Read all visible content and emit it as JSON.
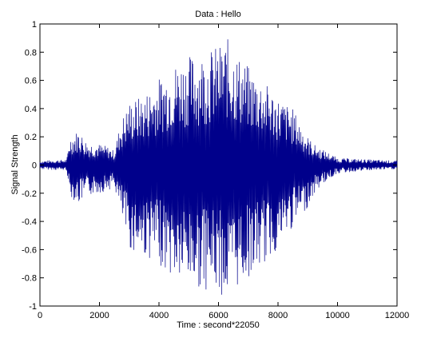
{
  "chart_data": {
    "type": "line",
    "title": "Data : Hello",
    "xlabel": "Time : second*22050",
    "ylabel": "Signal Strength",
    "xlim": [
      0,
      12000
    ],
    "ylim": [
      -1,
      1
    ],
    "xticks": [
      0,
      2000,
      4000,
      6000,
      8000,
      10000,
      12000
    ],
    "xtick_labels": [
      "0",
      "2000",
      "4000",
      "6000",
      "8000",
      "10000",
      "12000"
    ],
    "yticks": [
      -1,
      -0.8,
      -0.6,
      -0.4,
      -0.2,
      0,
      0.2,
      0.4,
      0.6,
      0.8,
      1
    ],
    "ytick_labels": [
      "-1",
      "-0.8",
      "-0.6",
      "-0.4",
      "-0.2",
      "0",
      "0.2",
      "0.4",
      "0.6",
      "0.8",
      "1"
    ],
    "grid": false,
    "line_color": "#00008b",
    "envelope": {
      "description": "approximate amplitude envelope of the oscillating waveform, read from the plot",
      "x": [
        0,
        900,
        1000,
        1300,
        1600,
        2000,
        2300,
        2500,
        2700,
        3000,
        3500,
        4000,
        4500,
        5000,
        5500,
        6000,
        6300,
        6600,
        7000,
        7500,
        8000,
        8500,
        9000,
        9300,
        9600,
        10000,
        11000,
        12000
      ],
      "upper": [
        0.03,
        0.04,
        0.2,
        0.25,
        0.16,
        0.15,
        0.13,
        0.1,
        0.3,
        0.45,
        0.5,
        0.62,
        0.72,
        0.78,
        0.8,
        0.85,
        0.9,
        0.8,
        0.7,
        0.6,
        0.48,
        0.4,
        0.2,
        0.13,
        0.1,
        0.05,
        0.04,
        0.03
      ],
      "lower": [
        -0.03,
        -0.04,
        -0.22,
        -0.28,
        -0.22,
        -0.2,
        -0.18,
        -0.15,
        -0.35,
        -0.6,
        -0.65,
        -0.7,
        -0.82,
        -0.86,
        -0.88,
        -0.9,
        -0.98,
        -0.88,
        -0.8,
        -0.72,
        -0.6,
        -0.45,
        -0.3,
        -0.18,
        -0.12,
        -0.06,
        -0.04,
        -0.03
      ]
    }
  }
}
